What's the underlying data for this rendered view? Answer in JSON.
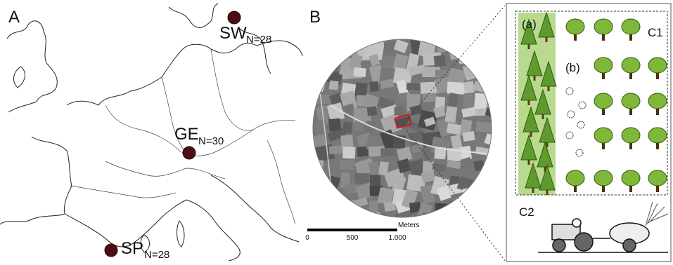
{
  "panel_a": {
    "label": "A",
    "sites": [
      {
        "code": "SW",
        "n": "N=28"
      },
      {
        "code": "GE",
        "n": "N=30"
      },
      {
        "code": "SP",
        "n": "N=28"
      }
    ]
  },
  "panel_b": {
    "label": "B",
    "scale": {
      "unit": "Meters",
      "ticks": [
        "0",
        "500",
        "1.000"
      ]
    }
  },
  "panel_c": {
    "c1": {
      "label": "C1",
      "a": "(a)",
      "b": "(b)"
    },
    "c2": {
      "label": "C2"
    }
  }
}
